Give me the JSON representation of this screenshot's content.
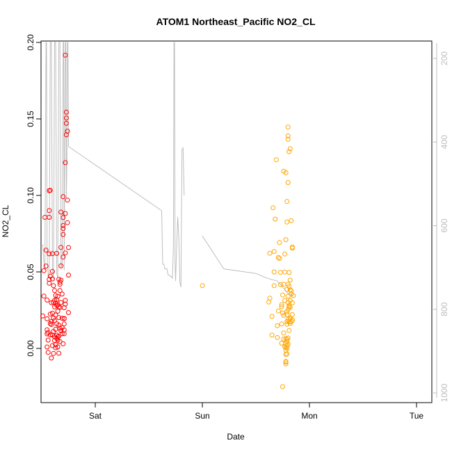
{
  "chart_data": {
    "type": "scatter",
    "title": "ATOM1 Northeast_Pacific NO2_CL",
    "xlabel": "Date",
    "ylabel": "NO2_CL",
    "x_categories": [
      "Sat",
      "Sun",
      "Mon",
      "Tue"
    ],
    "ylim": [
      -0.035,
      0.2
    ],
    "yticks": [
      0.0,
      0.05,
      0.1,
      0.15,
      0.2
    ],
    "ytick_labels": [
      "0.00",
      "0.05",
      "0.10",
      "0.15",
      "0.20"
    ],
    "y2_label_values": [
      200,
      400,
      600,
      800,
      1000
    ],
    "y2_range": [
      100,
      1010
    ],
    "y2_reversed": true,
    "grid": false,
    "colors": {
      "series1": "#ff0000",
      "series2": "#ffa500",
      "line": "#bebebe",
      "axis_right": "#bdbdbd"
    },
    "series": [
      {
        "color": "#ff0000",
        "points": [
          [
            -0.49,
            0.0212
          ],
          [
            -0.48,
            0.0342
          ],
          [
            -0.48,
            0.0508
          ],
          [
            -0.47,
            0.0857
          ],
          [
            -0.46,
            0.0538
          ],
          [
            -0.46,
            0.0642
          ],
          [
            -0.45,
            0.0316
          ],
          [
            -0.45,
            0.0121
          ],
          [
            -0.45,
            0.0193
          ],
          [
            -0.45,
            0.0009
          ],
          [
            -0.45,
            0.0095
          ],
          [
            -0.44,
            -0.0026
          ],
          [
            -0.44,
            0.0054
          ],
          [
            -0.44,
            0.0104
          ],
          [
            -0.43,
            0.0857
          ],
          [
            -0.43,
            0.0901
          ],
          [
            -0.43,
            0.0618
          ],
          [
            -0.43,
            0.1031
          ],
          [
            -0.43,
            0.0451
          ],
          [
            -0.43,
            0.0426
          ],
          [
            -0.42,
            0.0162
          ],
          [
            -0.42,
            0.1033
          ],
          [
            -0.42,
            0.0472
          ],
          [
            -0.42,
            0.0088
          ],
          [
            -0.42,
            0.0224
          ],
          [
            -0.41,
            0.0175
          ],
          [
            -0.41,
            -0.0063
          ],
          [
            -0.41,
            0.0298
          ],
          [
            -0.41,
            0.0157
          ],
          [
            -0.4,
            0.0454
          ],
          [
            -0.4,
            0.0018
          ],
          [
            -0.4,
            0.023
          ],
          [
            -0.4,
            0.0503
          ],
          [
            -0.4,
            0.0087
          ],
          [
            -0.4,
            0.0619
          ],
          [
            -0.39,
            -0.0033
          ],
          [
            -0.39,
            0.0302
          ],
          [
            -0.39,
            0.041
          ],
          [
            -0.39,
            0.0198
          ],
          [
            -0.39,
            0.0111
          ],
          [
            -0.38,
            0.0314
          ],
          [
            -0.38,
            0.0182
          ],
          [
            -0.38,
            0.0052
          ],
          [
            -0.38,
            0.0378
          ],
          [
            -0.38,
            0.0076
          ],
          [
            -0.38,
            0.0271
          ],
          [
            -0.37,
            0.0218
          ],
          [
            -0.37,
            0.0296
          ],
          [
            -0.37,
            0.0004
          ],
          [
            -0.37,
            0.0024
          ],
          [
            -0.37,
            0.0125
          ],
          [
            -0.37,
            0.0346
          ],
          [
            -0.36,
            0.0318
          ],
          [
            -0.36,
            0.0087
          ],
          [
            -0.36,
            0.0161
          ],
          [
            -0.36,
            0.0066
          ],
          [
            -0.36,
            0.0281
          ],
          [
            -0.36,
            0.0621
          ],
          [
            -0.35,
            0.034
          ],
          [
            -0.35,
            0.0076
          ],
          [
            -0.35,
            0.0243
          ],
          [
            -0.35,
            0.0053
          ],
          [
            -0.35,
            0.0009
          ],
          [
            -0.35,
            0.0284
          ],
          [
            -0.34,
            0.0452
          ],
          [
            -0.34,
            0.008
          ],
          [
            -0.34,
            0.0152
          ],
          [
            -0.34,
            -0.0032
          ],
          [
            -0.34,
            0.0202
          ],
          [
            -0.34,
            0.0271
          ],
          [
            -0.33,
            0.0419
          ],
          [
            -0.33,
            0.0378
          ],
          [
            -0.33,
            0.0433
          ],
          [
            -0.33,
            0.0267
          ],
          [
            -0.33,
            0.0132
          ],
          [
            -0.33,
            0.0044
          ],
          [
            -0.32,
            0.0446
          ],
          [
            -0.32,
            0.0891
          ],
          [
            -0.32,
            0.066
          ],
          [
            -0.32,
            0.0539
          ],
          [
            -0.32,
            0.03
          ],
          [
            -0.32,
            0.0116
          ],
          [
            -0.31,
            0.0136
          ],
          [
            -0.31,
            0.0197
          ],
          [
            -0.31,
            0.0096
          ],
          [
            -0.31,
            0.0355
          ],
          [
            -0.3,
            0.0855
          ],
          [
            -0.3,
            0.0803
          ],
          [
            -0.3,
            0.0783
          ],
          [
            -0.3,
            0.0992
          ],
          [
            -0.3,
            0.0744
          ],
          [
            -0.3,
            0.0597
          ],
          [
            -0.3,
            0.003
          ],
          [
            -0.29,
            0.0266
          ],
          [
            -0.29,
            0.016
          ],
          [
            -0.29,
            0.0196
          ],
          [
            -0.29,
            0.012
          ],
          [
            -0.29,
            0.0096
          ],
          [
            -0.29,
            0.0194
          ],
          [
            -0.28,
            0.0314
          ],
          [
            -0.28,
            0.0289
          ],
          [
            -0.28,
            0.1917
          ],
          [
            -0.28,
            0.1214
          ],
          [
            -0.28,
            0.0882
          ],
          [
            -0.28,
            0.0624
          ],
          [
            -0.27,
            0.1396
          ],
          [
            -0.27,
            0.1471
          ],
          [
            -0.27,
            0.1506
          ],
          [
            -0.27,
            0.1544
          ],
          [
            -0.26,
            0.142
          ],
          [
            -0.26,
            0.0969
          ],
          [
            -0.26,
            0.0822
          ],
          [
            -0.25,
            0.0659
          ],
          [
            -0.25,
            0.0479
          ],
          [
            -0.25,
            0.0234
          ]
        ]
      },
      {
        "color": "#ffa500",
        "points": [
          [
            1.0,
            0.041
          ],
          [
            1.62,
            0.0303
          ],
          [
            1.63,
            0.0622
          ],
          [
            1.63,
            0.0328
          ],
          [
            1.65,
            0.0209
          ],
          [
            1.65,
            0.0087
          ],
          [
            1.66,
            0.0919
          ],
          [
            1.67,
            0.0633
          ],
          [
            1.67,
            0.05
          ],
          [
            1.67,
            0.041
          ],
          [
            1.68,
            0.0845
          ],
          [
            1.69,
            0.1233
          ],
          [
            1.7,
            0.0148
          ],
          [
            1.7,
            0.0071
          ],
          [
            1.71,
            0.0244
          ],
          [
            1.71,
            0.0594
          ],
          [
            1.72,
            0.0692
          ],
          [
            1.72,
            0.0588
          ],
          [
            1.73,
            0.0497
          ],
          [
            1.73,
            0.0417
          ],
          [
            1.74,
            0.0285
          ],
          [
            1.74,
            0.016
          ],
          [
            1.74,
            0.0034
          ],
          [
            1.74,
            0.0272
          ],
          [
            1.75,
            0.0349
          ],
          [
            1.75,
            0.0232
          ],
          [
            1.75,
            -0.025
          ],
          [
            1.76,
            0.0101
          ],
          [
            1.76,
            0.0216
          ],
          [
            1.76,
            0.0419
          ],
          [
            1.76,
            0.1158
          ],
          [
            1.76,
            0.0061
          ],
          [
            1.77,
            0.0499
          ],
          [
            1.77,
            0.0617
          ],
          [
            1.77,
            0.0313
          ],
          [
            1.77,
            0.0011
          ],
          [
            1.78,
            -0.0089
          ],
          [
            1.78,
            0.0064
          ],
          [
            1.78,
            -0.0101
          ],
          [
            1.78,
            -0.0012
          ],
          [
            1.78,
            -0.0039
          ],
          [
            1.78,
            0.0006
          ],
          [
            1.78,
            0.0032
          ],
          [
            1.78,
            -0.0086
          ],
          [
            1.78,
            0.1148
          ],
          [
            1.78,
            0.0711
          ],
          [
            1.79,
            0.0175
          ],
          [
            1.79,
            -0.0036
          ],
          [
            1.79,
            0.0017
          ],
          [
            1.79,
            0.0
          ],
          [
            1.79,
            0.0058
          ],
          [
            1.79,
            0.0158
          ],
          [
            1.79,
            0.0043
          ],
          [
            1.79,
            0.0222
          ],
          [
            1.79,
            0.096
          ],
          [
            1.79,
            0.0826
          ],
          [
            1.79,
            0.024
          ],
          [
            1.79,
            0.0386
          ],
          [
            1.8,
            0.0027
          ],
          [
            1.8,
            0.1447
          ],
          [
            1.8,
            0.1389
          ],
          [
            1.8,
            0.1367
          ],
          [
            1.8,
            0.0341
          ],
          [
            1.8,
            0.0068
          ],
          [
            1.8,
            0.0255
          ],
          [
            1.8,
            0.0189
          ],
          [
            1.8,
            0.1084
          ],
          [
            1.8,
            0.0419
          ],
          [
            1.8,
            0.03
          ],
          [
            1.81,
            0.0117
          ],
          [
            1.81,
            0.0173
          ],
          [
            1.81,
            0.0271
          ],
          [
            1.81,
            0.1286
          ],
          [
            1.81,
            0.0496
          ],
          [
            1.81,
            0.0281
          ],
          [
            1.81,
            0.0405
          ],
          [
            1.82,
            0.0312
          ],
          [
            1.82,
            0.0383
          ],
          [
            1.82,
            0.1305
          ],
          [
            1.82,
            0.0268
          ],
          [
            1.82,
            0.0192
          ],
          [
            1.82,
            0.0163
          ],
          [
            1.82,
            0.0446
          ],
          [
            1.82,
            0.0199
          ],
          [
            1.83,
            0.0835
          ],
          [
            1.83,
            0.0376
          ],
          [
            1.83,
            0.0175
          ],
          [
            1.83,
            0.0356
          ],
          [
            1.84,
            0.0221
          ],
          [
            1.84,
            0.0655
          ],
          [
            1.84,
            0.0662
          ],
          [
            1.84,
            0.0184
          ],
          [
            1.84,
            0.0298
          ],
          [
            1.84,
            0.0185
          ],
          [
            1.85,
            0.0345
          ]
        ]
      }
    ],
    "line_series": [
      {
        "color": "#bebebe",
        "points": [
          [
            -0.49,
            0.068
          ],
          [
            -0.48,
            0.056
          ],
          [
            -0.47,
            0.051
          ],
          [
            -0.46,
            0.2
          ],
          [
            -0.455,
            0.2
          ],
          [
            -0.45,
            0.062
          ],
          [
            -0.44,
            0.048
          ],
          [
            -0.43,
            0.046
          ],
          [
            -0.42,
            0.2
          ],
          [
            -0.41,
            0.2
          ],
          [
            -0.4,
            0.052
          ],
          [
            -0.39,
            0.045
          ],
          [
            -0.38,
            0.2
          ],
          [
            -0.37,
            0.2
          ],
          [
            -0.36,
            0.049
          ],
          [
            -0.35,
            0.046
          ],
          [
            -0.34,
            0.2
          ],
          [
            -0.33,
            0.2
          ],
          [
            -0.32,
            0.053
          ],
          [
            -0.31,
            0.055
          ],
          [
            -0.3,
            0.2
          ],
          [
            -0.295,
            0.2
          ],
          [
            -0.29,
            0.051
          ],
          [
            -0.28,
            0.2
          ],
          [
            -0.275,
            0.2
          ],
          [
            -0.27,
            0.098
          ],
          [
            -0.265,
            0.122
          ],
          [
            -0.26,
            0.2
          ],
          [
            -0.255,
            0.2
          ],
          [
            -0.25,
            0.132
          ],
          [
            0.62,
            0.09
          ],
          [
            0.62,
            0.09
          ],
          [
            0.63,
            0.055
          ],
          [
            0.64,
            0.055
          ],
          [
            0.65,
            0.052
          ],
          [
            0.66,
            0.052
          ],
          [
            0.67,
            0.052
          ],
          [
            0.68,
            0.048
          ],
          [
            0.69,
            0.048
          ],
          [
            0.7,
            0.047
          ],
          [
            0.71,
            0.047
          ],
          [
            0.72,
            0.046
          ],
          [
            0.73,
            0.066
          ],
          [
            0.735,
            0.2
          ],
          [
            0.74,
            0.2
          ],
          [
            0.745,
            0.057
          ],
          [
            0.75,
            0.044
          ],
          [
            0.76,
            0.066
          ],
          [
            0.77,
            0.086
          ],
          [
            0.78,
            0.073
          ],
          [
            0.79,
            0.043
          ],
          [
            0.8,
            0.04
          ],
          [
            0.81,
            0.13
          ],
          [
            0.82,
            0.131
          ],
          [
            0.83,
            0.1
          ]
        ]
      },
      {
        "color": "#bebebe",
        "points": [
          [
            1.0,
            0.0735
          ],
          [
            1.2,
            0.052
          ],
          [
            1.5,
            0.049
          ],
          [
            1.6,
            0.046
          ],
          [
            1.7,
            0.044
          ],
          [
            1.8,
            0.036
          ],
          [
            1.85,
            0.034
          ]
        ]
      }
    ]
  }
}
